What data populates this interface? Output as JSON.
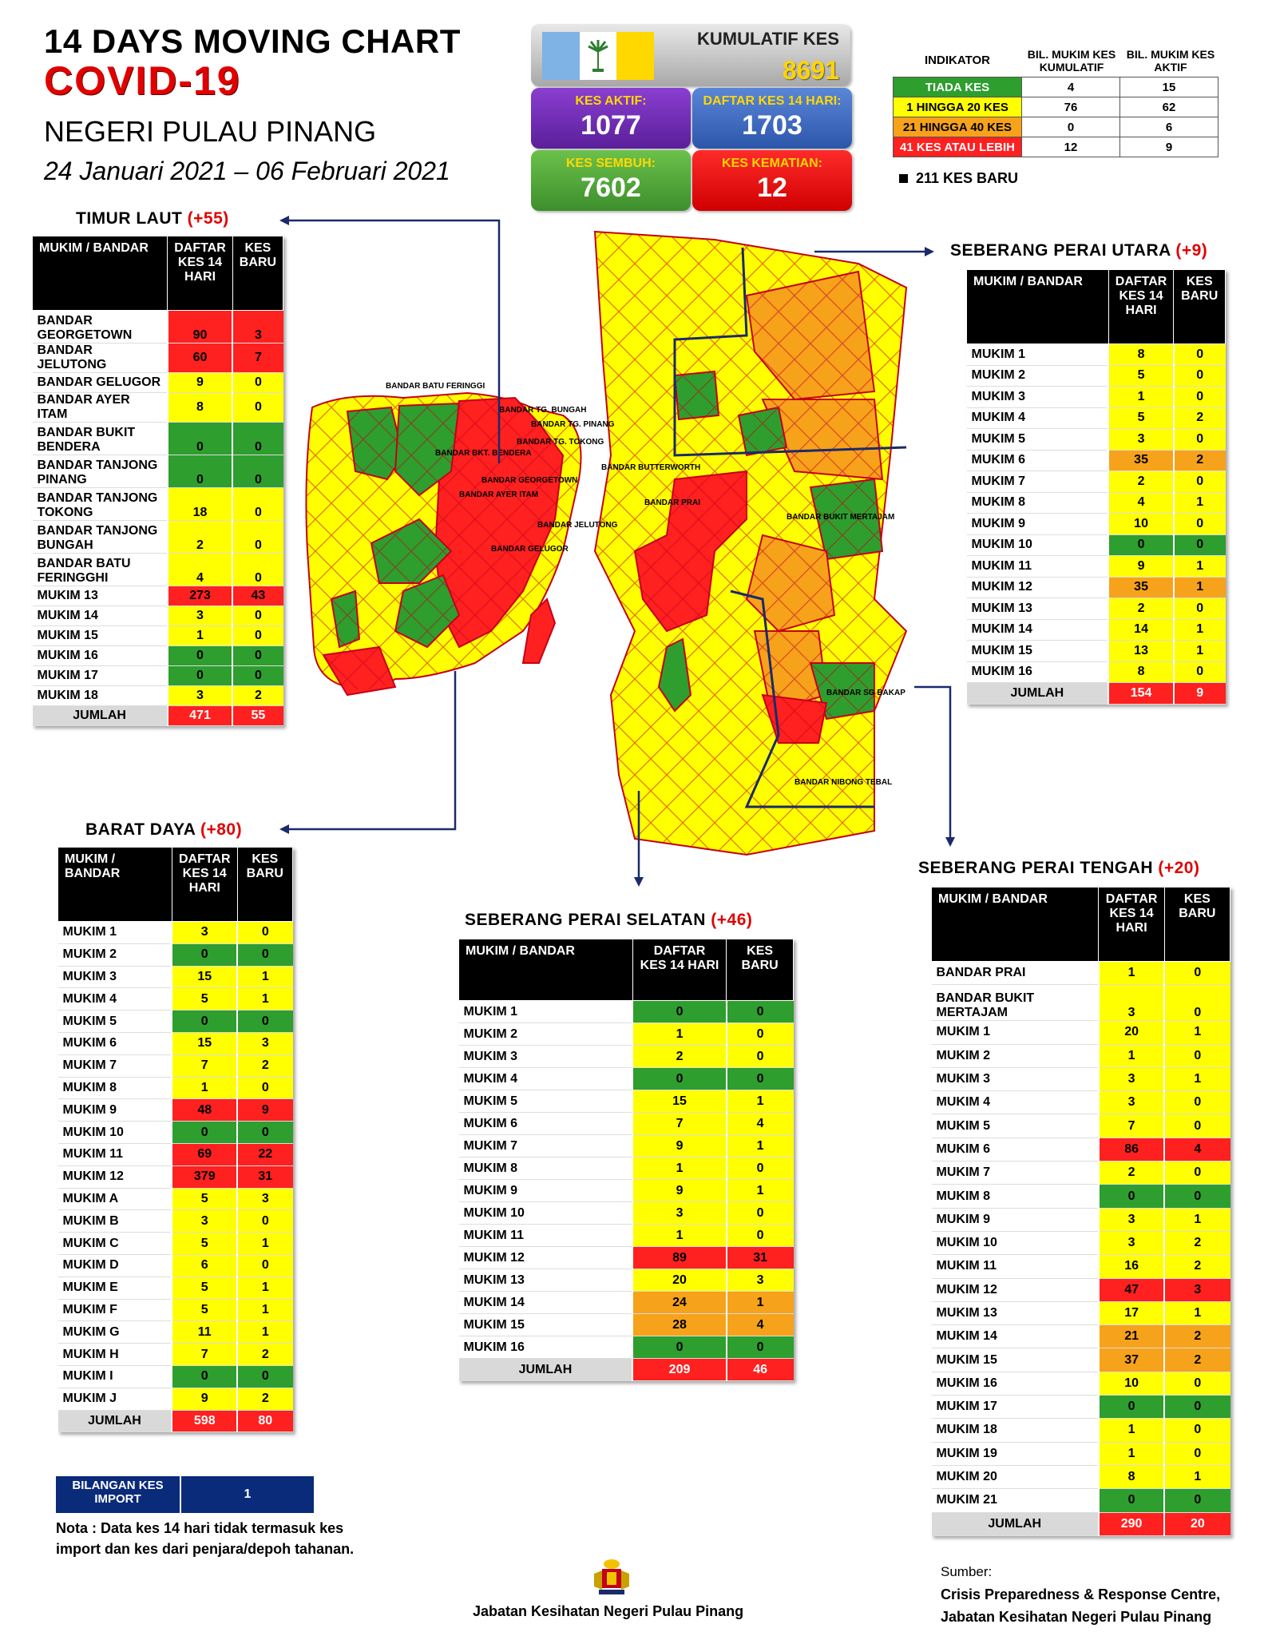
{
  "header": {
    "line1": "14  DAYS MOVING CHART",
    "line2": "COVID-19",
    "line3": "NEGERI PULAU PINANG",
    "line4": "24 Januari 2021 – 06 Februari 2021"
  },
  "stats": {
    "kumulatif_label": "KUMULATIF KES",
    "kumulatif_value": "8691",
    "aktif_label": "KES AKTIF:",
    "aktif_value": "1077",
    "daftar_label": "DAFTAR KES 14 HARI:",
    "daftar_value": "1703",
    "sembuh_label": "KES SEMBUH:",
    "sembuh_value": "7602",
    "kematian_label": "KES KEMATIAN:",
    "kematian_value": "12"
  },
  "indicator": {
    "col1": "INDIKATOR",
    "col2": "BIL. MUKIM KES KUMULATIF",
    "col3": "BIL. MUKIM KES AKTIF",
    "rows": [
      {
        "label": "TIADA KES",
        "kumulatif": "4",
        "aktif": "15"
      },
      {
        "label": "1 HINGGA 20 KES",
        "kumulatif": "76",
        "aktif": "62"
      },
      {
        "label": "21 HINGGA 40 KES",
        "kumulatif": "0",
        "aktif": "6"
      },
      {
        "label": "41 KES ATAU LEBIH",
        "kumulatif": "12",
        "aktif": "9"
      }
    ],
    "kes_baru": "211 KES BARU"
  },
  "colors": {
    "green": "#2e9e2e",
    "yellow": "#ffff00",
    "orange": "#f7a21b",
    "red": "#ff2020"
  },
  "tables": {
    "timur_laut": {
      "title": "TIMUR LAUT",
      "inc": "(+55)",
      "h1": "MUKIM / BANDAR",
      "h2": "DAFTAR KES 14 HARI",
      "h3": "KES BARU",
      "rows": [
        [
          "BANDAR GEORGETOWN",
          "90",
          "3"
        ],
        [
          "BANDAR JELUTONG",
          "60",
          "7"
        ],
        [
          "BANDAR GELUGOR",
          "9",
          "0"
        ],
        [
          "BANDAR AYER ITAM",
          "8",
          "0"
        ],
        [
          "BANDAR BUKIT BENDERA",
          "0",
          "0"
        ],
        [
          "BANDAR TANJONG PINANG",
          "0",
          "0"
        ],
        [
          "BANDAR TANJONG TOKONG",
          "18",
          "0"
        ],
        [
          "BANDAR TANJONG BUNGAH",
          "2",
          "0"
        ],
        [
          "BANDAR BATU FERINGGHI",
          "4",
          "0"
        ],
        [
          "MUKIM 13",
          "273",
          "43"
        ],
        [
          "MUKIM 14",
          "3",
          "0"
        ],
        [
          "MUKIM 15",
          "1",
          "0"
        ],
        [
          "MUKIM 16",
          "0",
          "0"
        ],
        [
          "MUKIM 17",
          "0",
          "0"
        ],
        [
          "MUKIM 18",
          "3",
          "2"
        ]
      ],
      "total": [
        "JUMLAH",
        "471",
        "55"
      ]
    },
    "spu": {
      "title": "SEBERANG PERAI UTARA",
      "inc": "(+9)",
      "h1": "MUKIM / BANDAR",
      "h2": "DAFTAR KES 14 HARI",
      "h3": "KES BARU",
      "rows": [
        [
          "MUKIM 1",
          "8",
          "0"
        ],
        [
          "MUKIM 2",
          "5",
          "0"
        ],
        [
          "MUKIM 3",
          "1",
          "0"
        ],
        [
          "MUKIM 4",
          "5",
          "2"
        ],
        [
          "MUKIM 5",
          "3",
          "0"
        ],
        [
          "MUKIM 6",
          "35",
          "2"
        ],
        [
          "MUKIM 7",
          "2",
          "0"
        ],
        [
          "MUKIM 8",
          "4",
          "1"
        ],
        [
          "MUKIM 9",
          "10",
          "0"
        ],
        [
          "MUKIM 10",
          "0",
          "0"
        ],
        [
          "MUKIM 11",
          "9",
          "1"
        ],
        [
          "MUKIM 12",
          "35",
          "1"
        ],
        [
          "MUKIM 13",
          "2",
          "0"
        ],
        [
          "MUKIM 14",
          "14",
          "1"
        ],
        [
          "MUKIM 15",
          "13",
          "1"
        ],
        [
          "MUKIM 16",
          "8",
          "0"
        ]
      ],
      "total": [
        "JUMLAH",
        "154",
        "9"
      ]
    },
    "barat_daya": {
      "title": "BARAT DAYA",
      "inc": "(+80)",
      "h1": "MUKIM / BANDAR",
      "h2": "DAFTAR KES 14 HARI",
      "h3": "KES BARU",
      "rows": [
        [
          "MUKIM 1",
          "3",
          "0"
        ],
        [
          "MUKIM 2",
          "0",
          "0"
        ],
        [
          "MUKIM 3",
          "15",
          "1"
        ],
        [
          "MUKIM 4",
          "5",
          "1"
        ],
        [
          "MUKIM 5",
          "0",
          "0"
        ],
        [
          "MUKIM 6",
          "15",
          "3"
        ],
        [
          "MUKIM 7",
          "7",
          "2"
        ],
        [
          "MUKIM 8",
          "1",
          "0"
        ],
        [
          "MUKIM 9",
          "48",
          "9"
        ],
        [
          "MUKIM 10",
          "0",
          "0"
        ],
        [
          "MUKIM 11",
          "69",
          "22"
        ],
        [
          "MUKIM 12",
          "379",
          "31"
        ],
        [
          "MUKIM A",
          "5",
          "3"
        ],
        [
          "MUKIM B",
          "3",
          "0"
        ],
        [
          "MUKIM C",
          "5",
          "1"
        ],
        [
          "MUKIM D",
          "6",
          "0"
        ],
        [
          "MUKIM E",
          "5",
          "1"
        ],
        [
          "MUKIM F",
          "5",
          "1"
        ],
        [
          "MUKIM G",
          "11",
          "1"
        ],
        [
          "MUKIM H",
          "7",
          "2"
        ],
        [
          "MUKIM I",
          "0",
          "0"
        ],
        [
          "MUKIM J",
          "9",
          "2"
        ]
      ],
      "total": [
        "JUMLAH",
        "598",
        "80"
      ]
    },
    "sps": {
      "title": "SEBERANG PERAI SELATAN",
      "inc": "(+46)",
      "h1": "MUKIM / BANDAR",
      "h2": "DAFTAR KES 14 HARI",
      "h3": "KES BARU",
      "rows": [
        [
          "MUKIM 1",
          "0",
          "0"
        ],
        [
          "MUKIM 2",
          "1",
          "0"
        ],
        [
          "MUKIM 3",
          "2",
          "0"
        ],
        [
          "MUKIM 4",
          "0",
          "0"
        ],
        [
          "MUKIM 5",
          "15",
          "1"
        ],
        [
          "MUKIM 6",
          "7",
          "4"
        ],
        [
          "MUKIM 7",
          "9",
          "1"
        ],
        [
          "MUKIM 8",
          "1",
          "0"
        ],
        [
          "MUKIM 9",
          "9",
          "1"
        ],
        [
          "MUKIM 10",
          "3",
          "0"
        ],
        [
          "MUKIM 11",
          "1",
          "0"
        ],
        [
          "MUKIM 12",
          "89",
          "31"
        ],
        [
          "MUKIM 13",
          "20",
          "3"
        ],
        [
          "MUKIM 14",
          "24",
          "1"
        ],
        [
          "MUKIM 15",
          "28",
          "4"
        ],
        [
          "MUKIM 16",
          "0",
          "0"
        ]
      ],
      "total": [
        "JUMLAH",
        "209",
        "46"
      ]
    },
    "spt": {
      "title": "SEBERANG PERAI TENGAH",
      "inc": "(+20)",
      "h1": "MUKIM / BANDAR",
      "h2": "DAFTAR KES 14 HARI",
      "h3": "KES BARU",
      "rows": [
        [
          "BANDAR PRAI",
          "1",
          "0"
        ],
        [
          "BANDAR BUKIT MERTAJAM",
          "3",
          "0"
        ],
        [
          "MUKIM 1",
          "20",
          "1"
        ],
        [
          "MUKIM 2",
          "1",
          "0"
        ],
        [
          "MUKIM 3",
          "3",
          "1"
        ],
        [
          "MUKIM 4",
          "3",
          "0"
        ],
        [
          "MUKIM 5",
          "7",
          "0"
        ],
        [
          "MUKIM 6",
          "86",
          "4"
        ],
        [
          "MUKIM 7",
          "2",
          "0"
        ],
        [
          "MUKIM 8",
          "0",
          "0"
        ],
        [
          "MUKIM 9",
          "3",
          "1"
        ],
        [
          "MUKIM 10",
          "3",
          "2"
        ],
        [
          "MUKIM 11",
          "16",
          "2"
        ],
        [
          "MUKIM 12",
          "47",
          "3"
        ],
        [
          "MUKIM 13",
          "17",
          "1"
        ],
        [
          "MUKIM 14",
          "21",
          "2"
        ],
        [
          "MUKIM 15",
          "37",
          "2"
        ],
        [
          "MUKIM 16",
          "10",
          "0"
        ],
        [
          "MUKIM 17",
          "0",
          "0"
        ],
        [
          "MUKIM 18",
          "1",
          "0"
        ],
        [
          "MUKIM 19",
          "1",
          "0"
        ],
        [
          "MUKIM 20",
          "8",
          "1"
        ],
        [
          "MUKIM 21",
          "0",
          "0"
        ]
      ],
      "total": [
        "JUMLAH",
        "290",
        "20"
      ]
    }
  },
  "map_labels": {
    "batu_feringgi": "BANDAR BATU FERINGGI",
    "tg_bungah": "BANDAR TG. BUNGAH",
    "tg_pinang": "BANDAR TG. PINANG",
    "tg_tokong": "BANDAR TG.  TOKONG",
    "georgetown": "BANDAR GEORGETOWN",
    "ayer_itam": "BANDAR AYER ITAM",
    "jelutong": "BANDAR JELUTONG",
    "gelugor": "BANDAR GELUGOR",
    "bkt_bendera": "BANDAR BKT. BENDERA",
    "butterworth": "BANDAR BUTTERWORTH",
    "prai": "BANDAR PRAI",
    "bukit_mertajam": "BANDAR BUKIT MERTAJAM",
    "sg_bakap": "BANDAR SG BAKAP",
    "nibong_tebal": "BANDAR NIBONG TEBAL"
  },
  "footer": {
    "import_label": "BILANGAN KES IMPORT",
    "import_value": "1",
    "note": "Nota : Data kes 14 hari tidak termasuk kes import dan kes dari penjara/depoh tahanan.",
    "sumber": "Sumber:",
    "source1": "Crisis Preparedness & Response Centre,",
    "source2": "Jabatan Kesihatan Negeri Pulau Pinang",
    "jabatan": "Jabatan Kesihatan Negeri Pulau Pinang"
  }
}
